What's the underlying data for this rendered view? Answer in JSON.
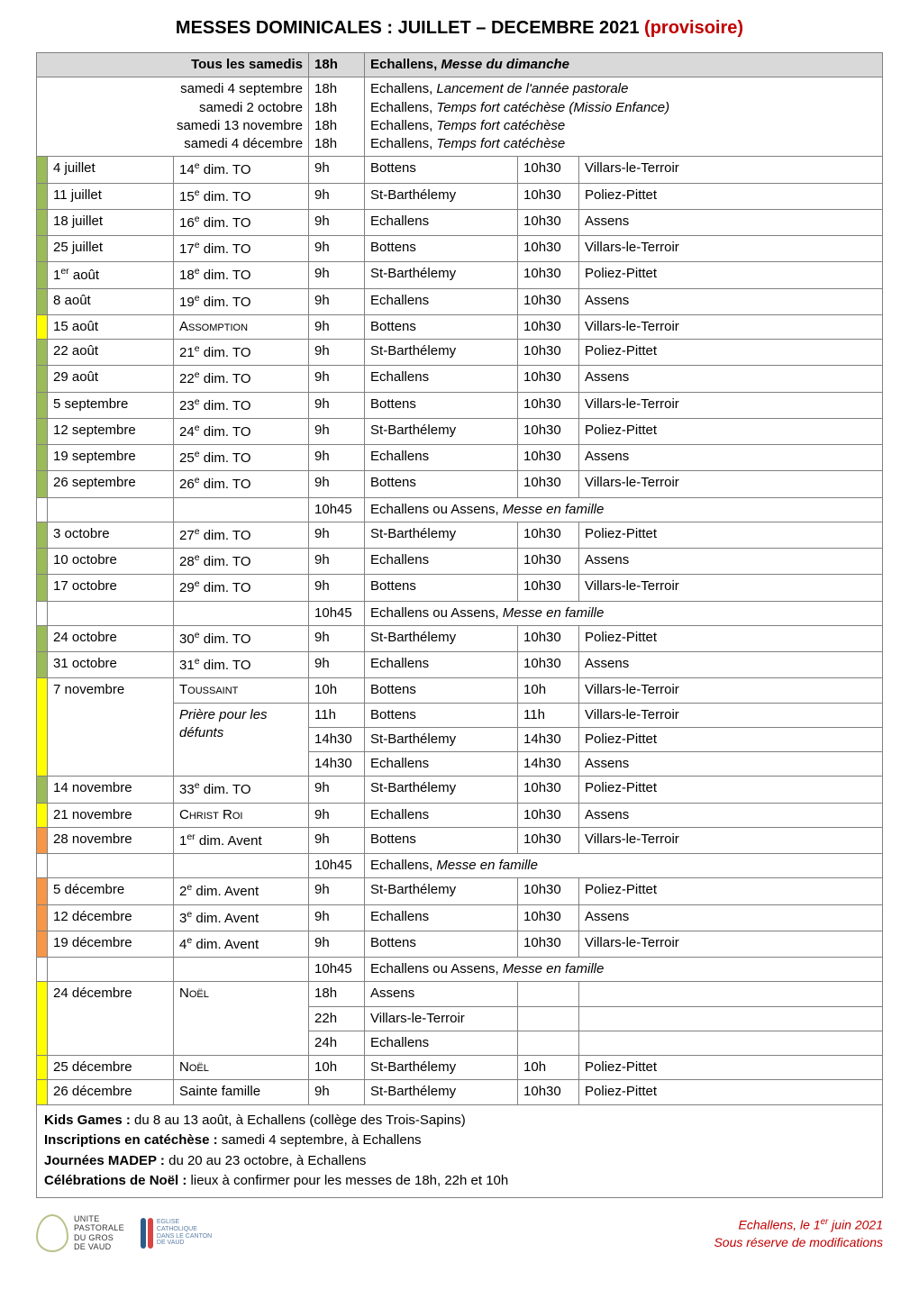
{
  "title_main": "MESSES DOMINICALES : JUILLET – DECEMBRE 2021 ",
  "title_prov": "(provisoire)",
  "header": {
    "left": "Tous les samedis",
    "time": "18h",
    "right_prefix": "Echallens, ",
    "right_em": "Messe du dimanche"
  },
  "special_dates": {
    "lines": [
      "samedi 4 septembre",
      "samedi 2 octobre",
      "samedi 13 novembre",
      "samedi 4 décembre"
    ],
    "times": [
      "18h",
      "18h",
      "18h",
      "18h"
    ],
    "descs": [
      {
        "pre": "Echallens, ",
        "em": "Lancement de l'année pastorale"
      },
      {
        "pre": "Echallens, ",
        "em": "Temps fort catéchèse (Missio Enfance)"
      },
      {
        "pre": "Echallens, ",
        "em": "Temps fort catéchèse"
      },
      {
        "pre": "Echallens, ",
        "em": "Temps fort catéchèse"
      }
    ]
  },
  "rows": [
    {
      "stripe": "green",
      "date": "4 juillet",
      "lit_n": "14",
      "lit_suf": "e",
      "lit_rest": " dim. TO",
      "t1": "9h",
      "l1": "Bottens",
      "t2": "10h30",
      "l2": "Villars-le-Terroir"
    },
    {
      "stripe": "green",
      "date": "11 juillet",
      "lit_n": "15",
      "lit_suf": "e",
      "lit_rest": " dim. TO",
      "t1": "9h",
      "l1": "St-Barthélemy",
      "t2": "10h30",
      "l2": "Poliez-Pittet"
    },
    {
      "stripe": "green",
      "date": "18 juillet",
      "lit_n": "16",
      "lit_suf": "e",
      "lit_rest": " dim. TO",
      "t1": "9h",
      "l1": "Echallens",
      "t2": "10h30",
      "l2": "Assens"
    },
    {
      "stripe": "green",
      "date": "25 juillet",
      "lit_n": "17",
      "lit_suf": "e",
      "lit_rest": " dim. TO",
      "t1": "9h",
      "l1": "Bottens",
      "t2": "10h30",
      "l2": "Villars-le-Terroir"
    },
    {
      "stripe": "green",
      "date_n": "1",
      "date_suf": "er",
      "date_rest": " août",
      "lit_n": "18",
      "lit_suf": "e",
      "lit_rest": " dim. TO",
      "t1": "9h",
      "l1": "St-Barthélemy",
      "t2": "10h30",
      "l2": "Poliez-Pittet"
    },
    {
      "stripe": "green",
      "date": "8 août",
      "lit_n": "19",
      "lit_suf": "e",
      "lit_rest": " dim. TO",
      "t1": "9h",
      "l1": "Echallens",
      "t2": "10h30",
      "l2": "Assens"
    },
    {
      "stripe": "yellow",
      "date": "15 août",
      "lit_sc": "Assomption",
      "t1": "9h",
      "l1": "Bottens",
      "t2": "10h30",
      "l2": "Villars-le-Terroir"
    },
    {
      "stripe": "green",
      "date": "22 août",
      "lit_n": "21",
      "lit_suf": "e",
      "lit_rest": " dim. TO",
      "t1": "9h",
      "l1": "St-Barthélemy",
      "t2": "10h30",
      "l2": "Poliez-Pittet"
    },
    {
      "stripe": "green",
      "date": "29 août",
      "lit_n": "22",
      "lit_suf": "e",
      "lit_rest": " dim. TO",
      "t1": "9h",
      "l1": "Echallens",
      "t2": "10h30",
      "l2": "Assens"
    },
    {
      "stripe": "green",
      "date": "5 septembre",
      "lit_n": "23",
      "lit_suf": "e",
      "lit_rest": " dim. TO",
      "t1": "9h",
      "l1": "Bottens",
      "t2": "10h30",
      "l2": "Villars-le-Terroir"
    },
    {
      "stripe": "green",
      "date": "12 septembre",
      "lit_n": "24",
      "lit_suf": "e",
      "lit_rest": " dim. TO",
      "t1": "9h",
      "l1": "St-Barthélemy",
      "t2": "10h30",
      "l2": "Poliez-Pittet"
    },
    {
      "stripe": "green",
      "date": "19 septembre",
      "lit_n": "25",
      "lit_suf": "e",
      "lit_rest": " dim. TO",
      "t1": "9h",
      "l1": "Echallens",
      "t2": "10h30",
      "l2": "Assens"
    },
    {
      "stripe": "green",
      "date": "26 septembre",
      "lit_n": "26",
      "lit_suf": "e",
      "lit_rest": " dim. TO",
      "t1": "9h",
      "l1": "Bottens",
      "t2": "10h30",
      "l2": "Villars-le-Terroir"
    }
  ],
  "famille1": {
    "t": "10h45",
    "pre": "Echallens ou Assens, ",
    "em": "Messe en famille"
  },
  "rows2": [
    {
      "stripe": "green",
      "date": "3 octobre",
      "lit_n": "27",
      "lit_suf": "e",
      "lit_rest": " dim. TO",
      "t1": "9h",
      "l1": "St-Barthélemy",
      "t2": "10h30",
      "l2": "Poliez-Pittet"
    },
    {
      "stripe": "green",
      "date": "10 octobre",
      "lit_n": "28",
      "lit_suf": "e",
      "lit_rest": " dim. TO",
      "t1": "9h",
      "l1": "Echallens",
      "t2": "10h30",
      "l2": "Assens"
    },
    {
      "stripe": "green",
      "date": "17 octobre",
      "lit_n": "29",
      "lit_suf": "e",
      "lit_rest": " dim. TO",
      "t1": "9h",
      "l1": "Bottens",
      "t2": "10h30",
      "l2": "Villars-le-Terroir"
    }
  ],
  "famille2": {
    "t": "10h45",
    "pre": "Echallens ou Assens, ",
    "em": "Messe en famille"
  },
  "rows3": [
    {
      "stripe": "green",
      "date": "24 octobre",
      "lit_n": "30",
      "lit_suf": "e",
      "lit_rest": " dim. TO",
      "t1": "9h",
      "l1": "St-Barthélemy",
      "t2": "10h30",
      "l2": "Poliez-Pittet"
    },
    {
      "stripe": "green",
      "date": "31 octobre",
      "lit_n": "31",
      "lit_suf": "e",
      "lit_rest": " dim. TO",
      "t1": "9h",
      "l1": "Echallens",
      "t2": "10h30",
      "l2": "Assens"
    }
  ],
  "toussaint": {
    "stripe": "yellow",
    "date": "7 novembre",
    "lit_sc": "Toussaint",
    "slots": [
      {
        "t1": "10h",
        "l1": "Bottens",
        "t2": "10h",
        "l2": "Villars-le-Terroir"
      }
    ],
    "priere_label": "Prière pour les défunts",
    "priere_slots": [
      {
        "t1": "11h",
        "l1": "Bottens",
        "t2": "11h",
        "l2": "Villars-le-Terroir"
      },
      {
        "t1": "14h30",
        "l1": "St-Barthélemy",
        "t2": "14h30",
        "l2": "Poliez-Pittet"
      },
      {
        "t1": "14h30",
        "l1": "Echallens",
        "t2": "14h30",
        "l2": "Assens"
      }
    ]
  },
  "rows4": [
    {
      "stripe": "green",
      "date": "14 novembre",
      "lit_n": "33",
      "lit_suf": "e",
      "lit_rest": " dim. TO",
      "t1": "9h",
      "l1": "St-Barthélemy",
      "t2": "10h30",
      "l2": "Poliez-Pittet"
    },
    {
      "stripe": "yellow",
      "date": "21 novembre",
      "lit_sc": "Christ Roi",
      "t1": "9h",
      "l1": "Echallens",
      "t2": "10h30",
      "l2": "Assens"
    },
    {
      "stripe": "orange",
      "date": "28 novembre",
      "lit_n": "1",
      "lit_suf": "er",
      "lit_rest": " dim. Avent",
      "t1": "9h",
      "l1": "Bottens",
      "t2": "10h30",
      "l2": "Villars-le-Terroir"
    }
  ],
  "famille3": {
    "t": "10h45",
    "pre": "Echallens, ",
    "em": "Messe en famille"
  },
  "rows5": [
    {
      "stripe": "orange",
      "date": "5 décembre",
      "lit_n": "2",
      "lit_suf": "e",
      "lit_rest": " dim. Avent",
      "t1": "9h",
      "l1": "St-Barthélemy",
      "t2": "10h30",
      "l2": "Poliez-Pittet"
    },
    {
      "stripe": "orange",
      "date": "12 décembre",
      "lit_n": "3",
      "lit_suf": "e",
      "lit_rest": " dim. Avent",
      "t1": "9h",
      "l1": "Echallens",
      "t2": "10h30",
      "l2": "Assens"
    },
    {
      "stripe": "orange",
      "date": "19 décembre",
      "lit_n": "4",
      "lit_suf": "e",
      "lit_rest": " dim. Avent",
      "t1": "9h",
      "l1": "Bottens",
      "t2": "10h30",
      "l2": "Villars-le-Terroir"
    }
  ],
  "famille4": {
    "t": "10h45",
    "pre": "Echallens ou Assens, ",
    "em": "Messe en famille"
  },
  "noel24": {
    "stripe": "yellow",
    "date": "24 décembre",
    "lit_sc": "Noël",
    "slots": [
      {
        "t1": "18h",
        "l1": "Assens"
      },
      {
        "t1": "22h",
        "l1": "Villars-le-Terroir"
      },
      {
        "t1": "24h",
        "l1": "Echallens"
      }
    ]
  },
  "rows6": [
    {
      "stripe": "yellow",
      "date": "25 décembre",
      "lit_sc": "Noël",
      "t1": "10h",
      "l1": "St-Barthélemy",
      "t2": "10h",
      "l2": "Poliez-Pittet"
    },
    {
      "stripe": "yellow",
      "date": "26 décembre",
      "lit_plain": "Sainte famille",
      "t1": "9h",
      "l1": "St-Barthélemy",
      "t2": "10h30",
      "l2": "Poliez-Pittet"
    }
  ],
  "notes": [
    {
      "b": "Kids Games :",
      "t": " du 8 au 13 août, à Echallens (collège des Trois-Sapins)"
    },
    {
      "b": "Inscriptions en catéchèse :",
      "t": " samedi 4 septembre, à Echallens"
    },
    {
      "b": "Journées MADEP :",
      "t": " du 20 au 23 octobre, à Echallens"
    },
    {
      "b": "Célébrations de Noël :",
      "t": " lieux à confirmer pour les messes de 18h, 22h et 10h"
    }
  ],
  "logo_up_text": "UNITE\nPASTORALE\nDU GROS\nDE VAUD",
  "logo_ec_text": "EGLISE\nCATHOLIQUE\nDANS LE CANTON\nDE VAUD",
  "logo_ec_colors": [
    "#2e5c8a",
    "#d94545"
  ],
  "footer_line1_pre": "Echallens, le 1",
  "footer_line1_suf": "er",
  "footer_line1_post": " juin 2021",
  "footer_line2": "Sous réserve de modifications"
}
